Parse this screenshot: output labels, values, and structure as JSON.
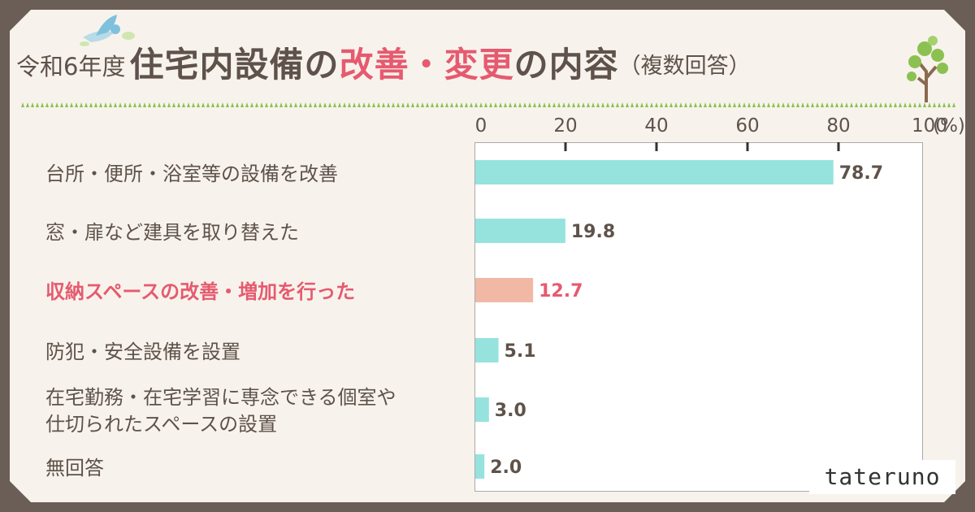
{
  "title": {
    "year": "令和6年度",
    "main_prefix": "住宅内設備の",
    "highlight": "改善・変更",
    "main_suffix": "の内容",
    "sub": "（複数回答）"
  },
  "brand": "tateruno",
  "colors": {
    "background": "#6b5e57",
    "card": "#f7f3ec",
    "text": "#5e524a",
    "highlight": "#e65a6f",
    "bar": "#96e3de",
    "bar_highlight": "#f2b8a6",
    "grass": "#8cc152"
  },
  "chart_data": {
    "type": "bar",
    "orientation": "horizontal",
    "x_unit": "(%)",
    "xlim": [
      0,
      100
    ],
    "x_ticks": [
      "0",
      "20",
      "40",
      "60",
      "80",
      "100"
    ],
    "categories": [
      "台所・便所・浴室等の設備を改善",
      "窓・扉など建具を取り替えた",
      "収納スペースの改善・増加を行った",
      "防犯・安全設備を設置",
      "在宅勤務・在宅学習に専念できる個室や仕切られたスペースの設置",
      "無回答"
    ],
    "category_lines": [
      [
        "台所・便所・浴室等の設備を改善"
      ],
      [
        "窓・扉など建具を取り替えた"
      ],
      [
        "収納スペースの改善・増加を行った"
      ],
      [
        "防犯・安全設備を設置"
      ],
      [
        "在宅勤務・在宅学習に専念できる個室や",
        "仕切られたスペースの設置"
      ],
      [
        "無回答"
      ]
    ],
    "values": [
      78.7,
      19.8,
      12.7,
      5.1,
      3.0,
      2.0
    ],
    "value_labels": [
      "78.7",
      "19.8",
      "12.7",
      "5.1",
      "3.0",
      "2.0"
    ],
    "highlight_index": 2,
    "grid": false
  }
}
